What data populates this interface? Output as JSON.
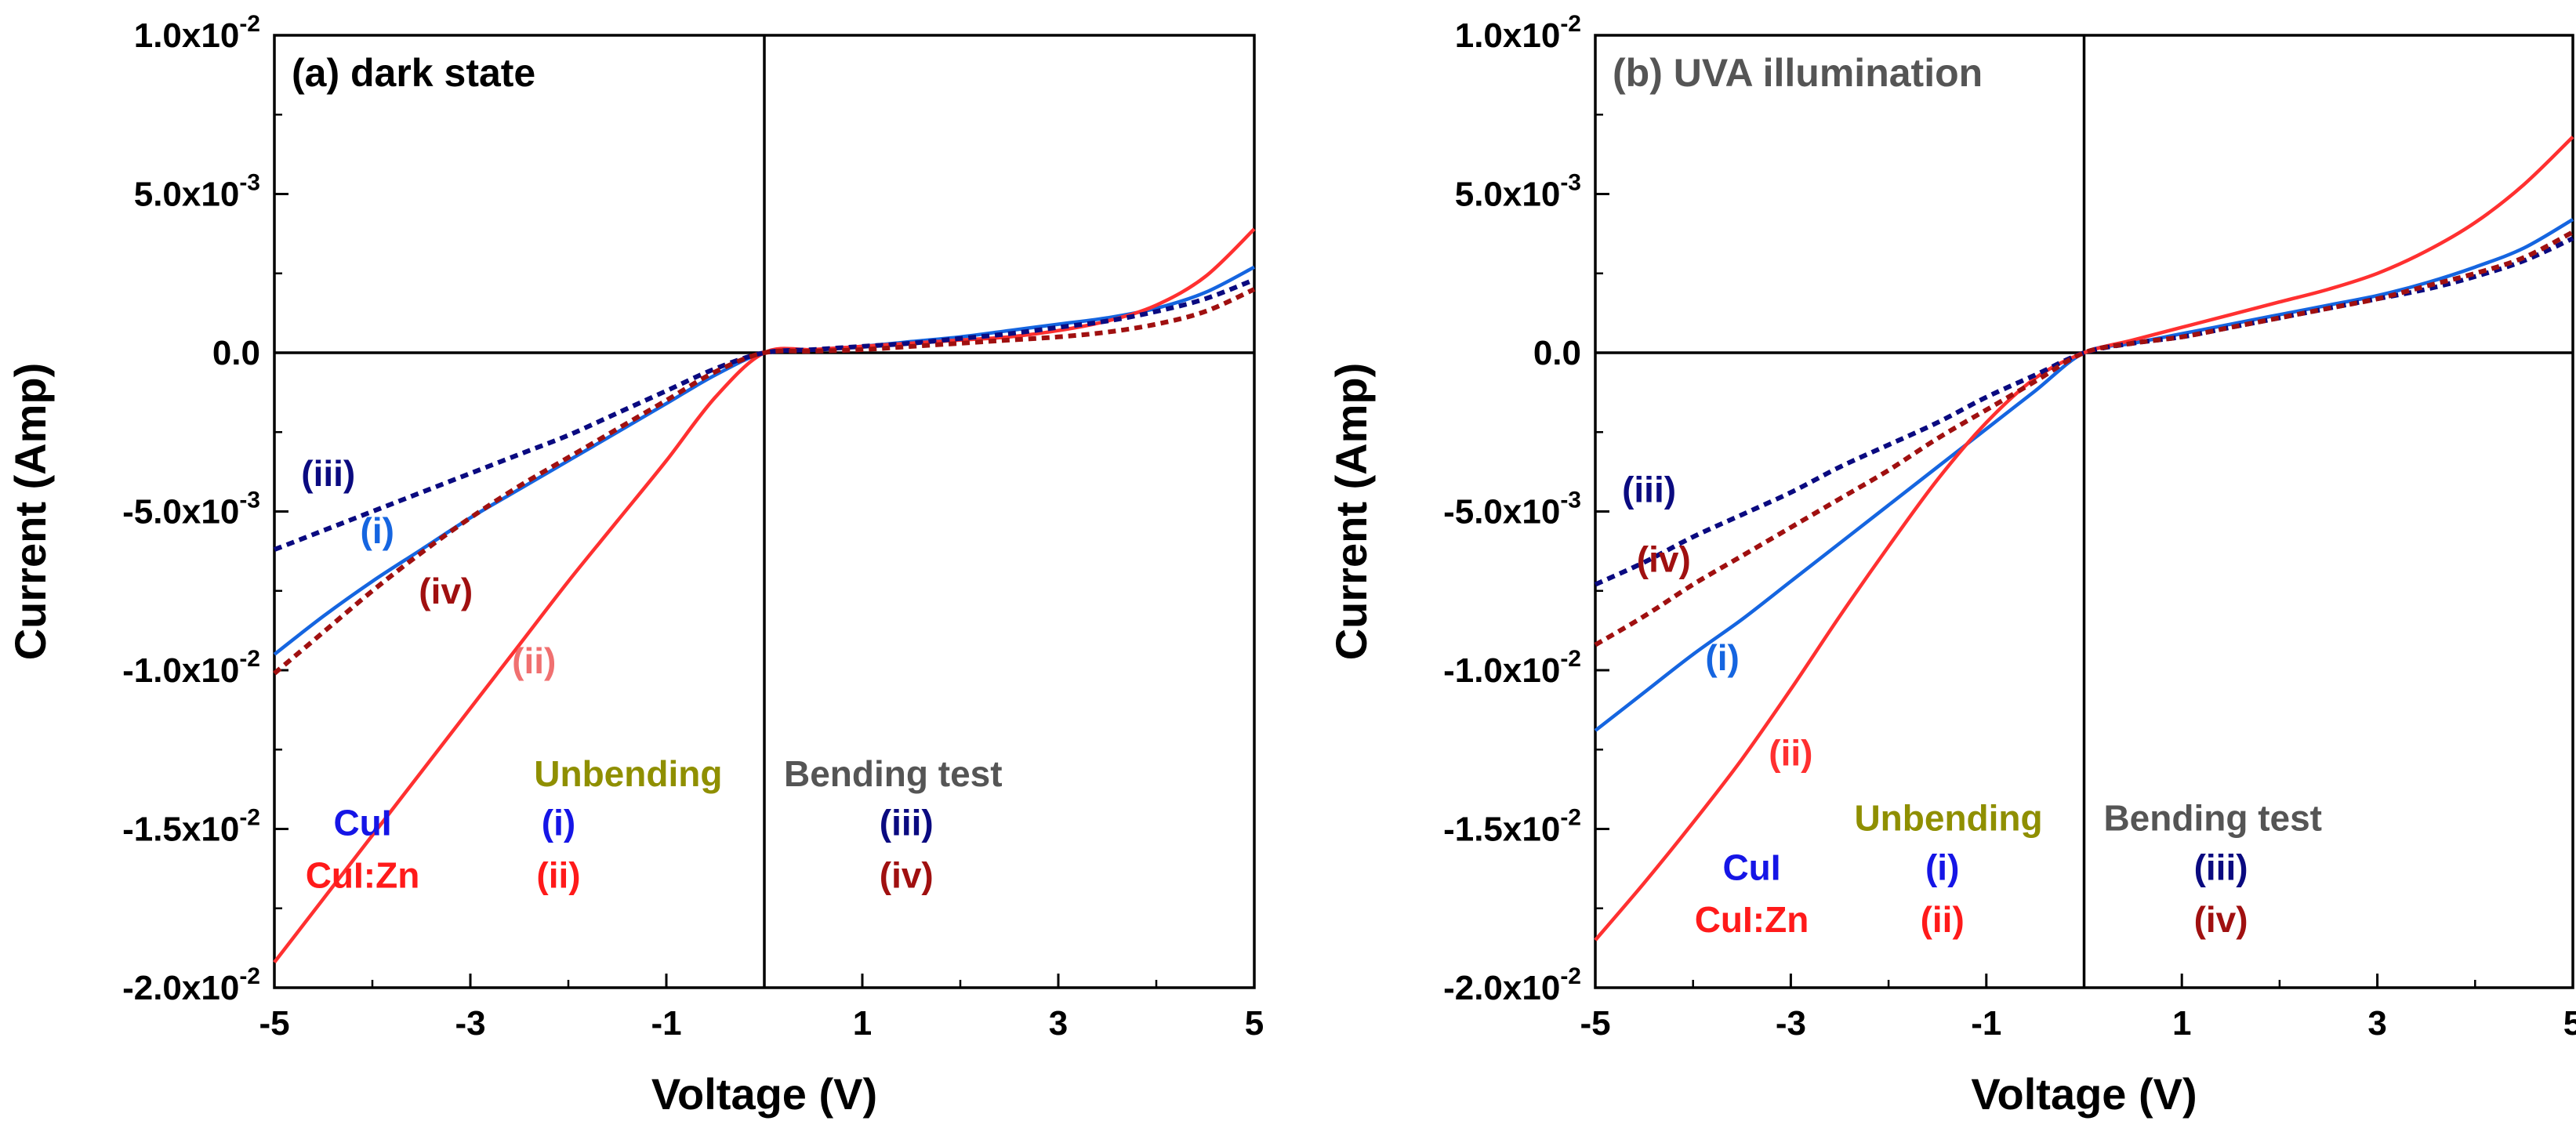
{
  "colors": {
    "cui_unbent": "#1565E0",
    "cuizn_unbent": "#FF3030",
    "cui_bent": "#0A0A80",
    "cuizn_bent": "#A01010",
    "unbending_heading": "#8F8F00",
    "bending_heading": "#555555",
    "cui_text": "#1515E6",
    "cuizn_text": "#FF1A1A",
    "iii_text": "#0A0A80",
    "iv_text": "#A01010",
    "panel_a_title": "#000000",
    "panel_b_title": "#555555",
    "ii_label_a": "#F07070"
  },
  "chart_data": [
    {
      "type": "line",
      "title": "(a) dark state",
      "xlabel": "Voltage (V)",
      "ylabel": "Current (Amp)",
      "xlim": [
        -5,
        5
      ],
      "ylim": [
        -0.02,
        0.01
      ],
      "xticks": [
        -5,
        -3,
        -1,
        1,
        3,
        5
      ],
      "xtick_labels": [
        "-5",
        "-3",
        "-1",
        "1",
        "3",
        "5"
      ],
      "yticks": [
        0.01,
        0.005,
        0,
        -0.005,
        -0.01,
        -0.015,
        -0.02
      ],
      "ytick_labels": [
        {
          "mantissa": "1.0x10",
          "exp": "-2"
        },
        {
          "mantissa": "5.0x10",
          "exp": "-3"
        },
        {
          "mantissa": "0.0",
          "exp": ""
        },
        {
          "mantissa": "-5.0x10",
          "exp": "-3"
        },
        {
          "mantissa": "-1.0x10",
          "exp": "-2"
        },
        {
          "mantissa": "-1.5x10",
          "exp": "-2"
        },
        {
          "mantissa": "-2.0x10",
          "exp": "-2"
        }
      ],
      "x": [
        -5,
        -4.5,
        -4,
        -3.5,
        -3,
        -2.5,
        -2,
        -1.5,
        -1,
        -0.5,
        0,
        0.5,
        1,
        1.5,
        2,
        2.5,
        3,
        3.5,
        4,
        4.5,
        5
      ],
      "series": [
        {
          "name": "(i) CuI unbending",
          "style": "solid",
          "color_key": "cui_unbent",
          "values": [
            -0.0095,
            -0.0083,
            -0.0072,
            -0.0062,
            -0.0052,
            -0.0043,
            -0.0034,
            -0.0025,
            -0.0016,
            -0.0007,
            0,
            0.0001,
            0.0002,
            0.00035,
            0.0005,
            0.0007,
            0.0009,
            0.0011,
            0.0014,
            0.0019,
            0.0027
          ]
        },
        {
          "name": "(ii) CuI:Zn unbending",
          "style": "solid",
          "color_key": "cuizn_unbent",
          "values": [
            -0.0192,
            -0.0172,
            -0.0152,
            -0.0132,
            -0.0112,
            -0.0092,
            -0.0072,
            -0.0053,
            -0.0034,
            -0.0014,
            0,
            0.0001,
            0.0002,
            0.0003,
            0.0004,
            0.0005,
            0.0007,
            0.001,
            0.0015,
            0.0024,
            0.0039
          ]
        },
        {
          "name": "(iii) CuI bending test",
          "style": "dashed",
          "color_key": "cui_bent",
          "values": [
            -0.0062,
            -0.0056,
            -0.005,
            -0.0044,
            -0.0038,
            -0.0032,
            -0.0026,
            -0.0019,
            -0.0012,
            -0.0005,
            0,
            0.0001,
            0.0002,
            0.0003,
            0.00045,
            0.0006,
            0.0008,
            0.001,
            0.0013,
            0.0017,
            0.0023
          ]
        },
        {
          "name": "(iv) CuI:Zn bending test",
          "style": "dashed",
          "color_key": "cuizn_bent",
          "values": [
            -0.0101,
            -0.0088,
            -0.0075,
            -0.0063,
            -0.0052,
            -0.0042,
            -0.0033,
            -0.0024,
            -0.0015,
            -0.0006,
            0,
            5e-05,
            0.0001,
            0.0002,
            0.0003,
            0.0004,
            0.0005,
            0.00065,
            0.0009,
            0.0013,
            0.002
          ]
        }
      ],
      "annotations": {
        "series_labels": [
          {
            "text": "(iii)",
            "color_key": "cui_bent",
            "at": [
              -4.45,
              -0.0042
            ]
          },
          {
            "text": "(i)",
            "color_key": "cui_unbent",
            "at": [
              -3.95,
              -0.006
            ]
          },
          {
            "text": "(iv)",
            "color_key": "cuizn_bent",
            "at": [
              -3.25,
              -0.0079
            ]
          },
          {
            "text": "(ii)",
            "color_key": "ii_label_a",
            "at": [
              -2.35,
              -0.0101
            ]
          }
        ],
        "legend_table": {
          "unbending_heading": "Unbending",
          "bending_heading": "Bending test",
          "row1_name": "CuI",
          "row2_name": "CuI:Zn",
          "row1_unbending": "(i)",
          "row2_unbending": "(ii)",
          "row1_bending": "(iii)",
          "row2_bending": "(iv)",
          "heading_y": -0.01365,
          "row1_y": -0.0152,
          "row2_y": -0.01685,
          "unbending_heading_x": -2.35,
          "bending_heading_x": 0.2,
          "name_x": -4.1,
          "unbending_col_x": -2.1,
          "bending_col_x": 1.45
        }
      }
    },
    {
      "type": "line",
      "title": "(b) UVA illumination",
      "xlabel": "Voltage (V)",
      "ylabel": "Current (Amp)",
      "xlim": [
        -5,
        5
      ],
      "ylim": [
        -0.02,
        0.01
      ],
      "xticks": [
        -5,
        -3,
        -1,
        1,
        3,
        5
      ],
      "xtick_labels": [
        "-5",
        "-3",
        "-1",
        "1",
        "3",
        "5"
      ],
      "yticks": [
        0.01,
        0.005,
        0,
        -0.005,
        -0.01,
        -0.015,
        -0.02
      ],
      "ytick_labels": [
        {
          "mantissa": "1.0x10",
          "exp": "-2"
        },
        {
          "mantissa": "5.0x10",
          "exp": "-3"
        },
        {
          "mantissa": "0.0",
          "exp": ""
        },
        {
          "mantissa": "-5.0x10",
          "exp": "-3"
        },
        {
          "mantissa": "-1.0x10",
          "exp": "-2"
        },
        {
          "mantissa": "-1.5x10",
          "exp": "-2"
        },
        {
          "mantissa": "-2.0x10",
          "exp": "-2"
        }
      ],
      "x": [
        -5,
        -4.5,
        -4,
        -3.5,
        -3,
        -2.5,
        -2,
        -1.5,
        -1,
        -0.5,
        0,
        0.5,
        1,
        1.5,
        2,
        2.5,
        3,
        3.5,
        4,
        4.5,
        5
      ],
      "series": [
        {
          "name": "(i) CuI unbending",
          "style": "solid",
          "color_key": "cui_unbent",
          "values": [
            -0.0119,
            -0.0107,
            -0.0095,
            -0.0084,
            -0.0072,
            -0.006,
            -0.0048,
            -0.0036,
            -0.0024,
            -0.0012,
            0,
            0.0003,
            0.0006,
            0.0009,
            0.0012,
            0.0015,
            0.0018,
            0.0022,
            0.0027,
            0.0033,
            0.0042
          ]
        },
        {
          "name": "(ii) CuI:Zn unbending",
          "style": "solid",
          "color_key": "cuizn_unbent",
          "values": [
            -0.0185,
            -0.0167,
            -0.0148,
            -0.0128,
            -0.0106,
            -0.0083,
            -0.0061,
            -0.004,
            -0.0022,
            -0.0008,
            0,
            0.0004,
            0.0008,
            0.0012,
            0.0016,
            0.002,
            0.0025,
            0.0032,
            0.0041,
            0.0053,
            0.0068
          ]
        },
        {
          "name": "(iii) CuI bending test",
          "style": "dashed",
          "color_key": "cui_bent",
          "values": [
            -0.0073,
            -0.0066,
            -0.0058,
            -0.0051,
            -0.0044,
            -0.0036,
            -0.0029,
            -0.0022,
            -0.0014,
            -0.0007,
            0,
            0.0003,
            0.0005,
            0.0008,
            0.0011,
            0.0014,
            0.0017,
            0.002,
            0.0024,
            0.0029,
            0.0036
          ]
        },
        {
          "name": "(iv) CuI:Zn bending test",
          "style": "dashed",
          "color_key": "cuizn_bent",
          "values": [
            -0.0092,
            -0.0083,
            -0.0073,
            -0.0064,
            -0.0055,
            -0.0046,
            -0.0037,
            -0.0027,
            -0.0018,
            -0.0009,
            0,
            0.0003,
            0.0005,
            0.0008,
            0.0011,
            0.0014,
            0.0017,
            0.0021,
            0.0025,
            0.003,
            0.0038
          ]
        }
      ],
      "annotations": {
        "series_labels": [
          {
            "text": "(iii)",
            "color_key": "cui_bent",
            "at": [
              -4.45,
              -0.0047
            ]
          },
          {
            "text": "(iv)",
            "color_key": "cuizn_bent",
            "at": [
              -4.3,
              -0.0069
            ]
          },
          {
            "text": "(i)",
            "color_key": "cui_unbent",
            "at": [
              -3.7,
              -0.01
            ]
          },
          {
            "text": "(ii)",
            "color_key": "cuizn_unbent",
            "at": [
              -3.0,
              -0.013
            ]
          }
        ],
        "legend_table": {
          "unbending_heading": "Unbending",
          "bending_heading": "Bending test",
          "row1_name": "CuI",
          "row2_name": "CuI:Zn",
          "row1_unbending": "(i)",
          "row2_unbending": "(ii)",
          "row1_bending": "(iii)",
          "row2_bending": "(iv)",
          "heading_y": -0.01505,
          "row1_y": -0.0166,
          "row2_y": -0.01825,
          "unbending_heading_x": -2.35,
          "bending_heading_x": 0.2,
          "name_x": -3.4,
          "unbending_col_x": -1.45,
          "bending_col_x": 1.4
        }
      }
    }
  ]
}
